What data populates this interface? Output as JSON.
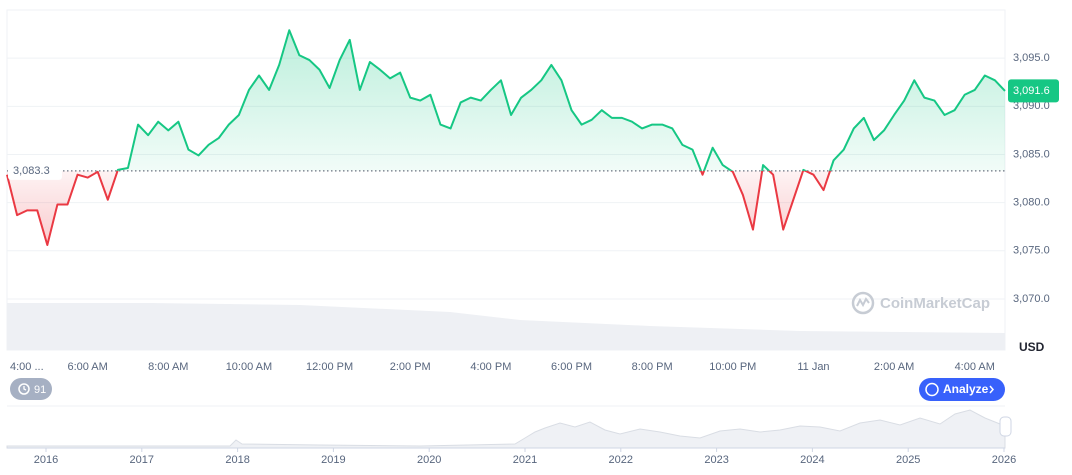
{
  "chart_data": {
    "type": "line",
    "y_unit": "USD",
    "color": "#16c784",
    "down_color": "#ea3943",
    "baseline": {
      "value": 3083.3,
      "label": "3,083.3"
    },
    "price_label": {
      "value": 3091.6,
      "label": "3,091.6"
    },
    "xlim": [
      0,
      24.75
    ],
    "ylim": [
      3064.7,
      3100
    ],
    "grid": true,
    "xticks": [
      {
        "value": 0,
        "label": "4:00 ..."
      },
      {
        "value": 2,
        "label": "6:00 AM"
      },
      {
        "value": 4,
        "label": "8:00 AM"
      },
      {
        "value": 6,
        "label": "10:00 AM"
      },
      {
        "value": 8,
        "label": "12:00 PM"
      },
      {
        "value": 10,
        "label": "2:00 PM"
      },
      {
        "value": 12,
        "label": "4:00 PM"
      },
      {
        "value": 14,
        "label": "6:00 PM"
      },
      {
        "value": 16,
        "label": "8:00 PM"
      },
      {
        "value": 18,
        "label": "10:00 PM"
      },
      {
        "value": 20,
        "label": "11 Jan"
      },
      {
        "value": 22,
        "label": "2:00 AM"
      },
      {
        "value": 24,
        "label": "4:00 AM"
      }
    ],
    "yticks": [
      {
        "value": 3070,
        "label": "3,070.0"
      },
      {
        "value": 3075,
        "label": "3,075.0"
      },
      {
        "value": 3080,
        "label": "3,080.0"
      },
      {
        "value": 3085,
        "label": "3,085.0"
      },
      {
        "value": 3090,
        "label": "3,090.0"
      },
      {
        "value": 3095,
        "label": "3,095.0"
      }
    ],
    "x": [
      0,
      0.25,
      0.5,
      0.75,
      1,
      1.25,
      1.5,
      1.75,
      2,
      2.25,
      2.5,
      2.75,
      3,
      3.25,
      3.5,
      3.75,
      4,
      4.25,
      4.5,
      4.75,
      5,
      5.25,
      5.5,
      5.75,
      6,
      6.25,
      6.5,
      6.75,
      7,
      7.25,
      7.5,
      7.75,
      8,
      8.25,
      8.5,
      8.75,
      9,
      9.25,
      9.5,
      9.75,
      10,
      10.25,
      10.5,
      10.75,
      11,
      11.25,
      11.5,
      11.75,
      12,
      12.25,
      12.5,
      12.75,
      13,
      13.25,
      13.5,
      13.75,
      14,
      14.25,
      14.5,
      14.75,
      15,
      15.25,
      15.5,
      15.75,
      16,
      16.25,
      16.5,
      16.75,
      17,
      17.25,
      17.5,
      17.75,
      18,
      18.25,
      18.5,
      18.75,
      19,
      19.25,
      19.5,
      19.75,
      20,
      20.25,
      20.5,
      20.75,
      21,
      21.25,
      21.5,
      21.75,
      22,
      22.25,
      22.5,
      22.75,
      23,
      23.25,
      23.5,
      23.75,
      24,
      24.25,
      24.5,
      24.75
    ],
    "values": [
      3082.9,
      3078.7,
      3079.2,
      3079.2,
      3075.6,
      3079.8,
      3079.8,
      3082.9,
      3082.6,
      3083.2,
      3080.3,
      3083.4,
      3083.6,
      3088.1,
      3087.0,
      3088.4,
      3087.5,
      3088.4,
      3085.5,
      3084.9,
      3086.0,
      3086.7,
      3088.1,
      3089.1,
      3091.7,
      3093.2,
      3091.7,
      3094.3,
      3097.9,
      3095.3,
      3094.8,
      3093.8,
      3091.9,
      3094.8,
      3096.9,
      3091.7,
      3094.6,
      3093.8,
      3092.9,
      3093.5,
      3090.9,
      3090.6,
      3091.2,
      3088.1,
      3087.7,
      3090.4,
      3090.9,
      3090.6,
      3091.7,
      3092.7,
      3089.1,
      3090.9,
      3091.7,
      3092.7,
      3094.3,
      3092.7,
      3089.6,
      3088.1,
      3088.6,
      3089.6,
      3088.8,
      3088.8,
      3088.4,
      3087.7,
      3088.1,
      3088.1,
      3087.7,
      3086.0,
      3085.5,
      3082.9,
      3085.7,
      3083.9,
      3083.2,
      3080.8,
      3077.2,
      3083.9,
      3082.9,
      3077.2,
      3080.3,
      3083.4,
      3082.9,
      3081.3,
      3084.4,
      3085.5,
      3087.7,
      3088.8,
      3086.5,
      3087.5,
      3089.1,
      3090.6,
      3092.7,
      3090.9,
      3090.6,
      3089.1,
      3089.6,
      3091.2,
      3091.7,
      3093.2,
      3092.7,
      3091.6
    ]
  },
  "navigator": {
    "years": [
      "2016",
      "2017",
      "2018",
      "2019",
      "2020",
      "2021",
      "2022",
      "2023",
      "2024",
      "2025",
      "2026"
    ]
  },
  "controls": {
    "watermark": "CoinMarketCap",
    "history_count": 91,
    "analyze": "Analyze"
  }
}
